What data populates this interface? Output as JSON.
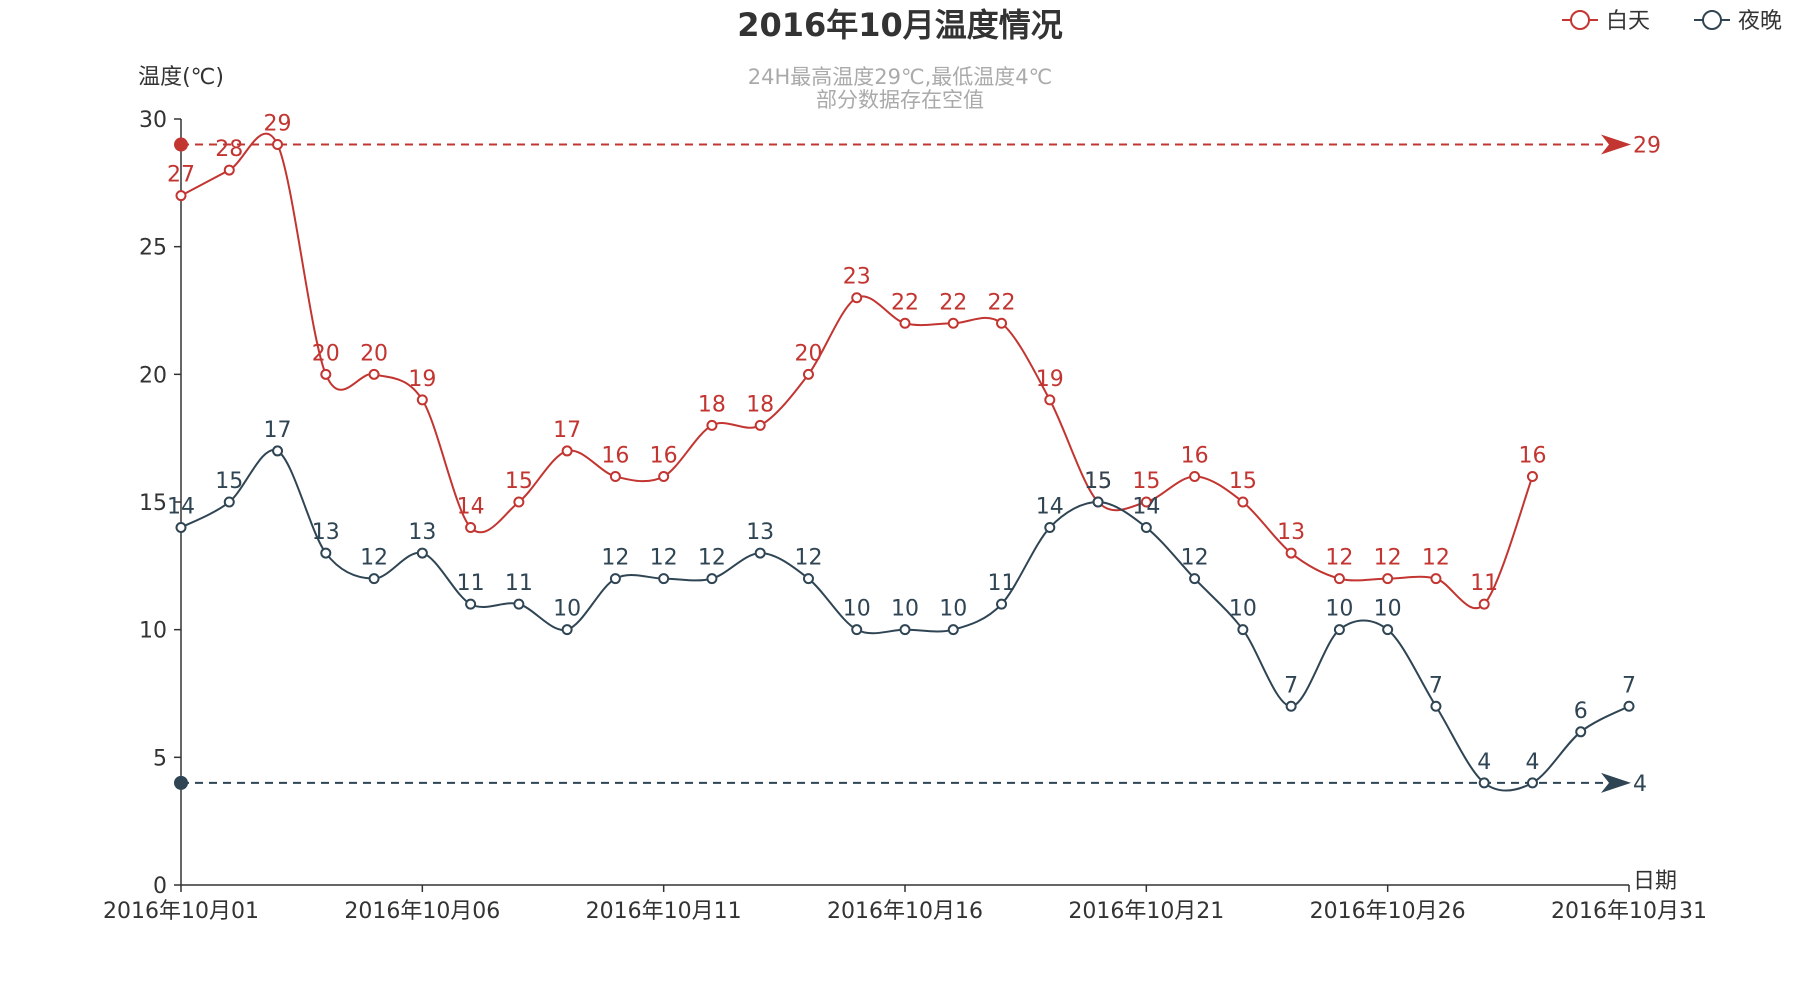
{
  "chart_data": {
    "type": "line",
    "title": "2016年10月温度情况",
    "subtitle_lines": [
      "24H最高温度29℃,最低温度4℃",
      "部分数据存在空值"
    ],
    "ylabel": "温度(℃)",
    "xlabel": "日期",
    "ylim": [
      0,
      30
    ],
    "y_ticks": [
      "0",
      "5",
      "10",
      "15",
      "20",
      "25",
      "30"
    ],
    "x_tick_labels": [
      "2016年10月01",
      "2016年10月06",
      "2016年10月11",
      "2016年10月16",
      "2016年10月21",
      "2016年10月26",
      "2016年10月31"
    ],
    "x": [
      "2016-10-01",
      "2016-10-02",
      "2016-10-03",
      "2016-10-04",
      "2016-10-05",
      "2016-10-06",
      "2016-10-07",
      "2016-10-08",
      "2016-10-09",
      "2016-10-10",
      "2016-10-11",
      "2016-10-12",
      "2016-10-13",
      "2016-10-14",
      "2016-10-15",
      "2016-10-16",
      "2016-10-17",
      "2016-10-18",
      "2016-10-19",
      "2016-10-20",
      "2016-10-21",
      "2016-10-22",
      "2016-10-23",
      "2016-10-24",
      "2016-10-25",
      "2016-10-26",
      "2016-10-27",
      "2016-10-28",
      "2016-10-29",
      "2016-10-30",
      "2016-10-31"
    ],
    "series": [
      {
        "name": "白天",
        "color": "#c23531",
        "values": [
          27,
          28,
          29,
          20,
          20,
          19,
          14,
          15,
          17,
          16,
          16,
          18,
          18,
          20,
          23,
          22,
          22,
          22,
          19,
          15,
          15,
          16,
          15,
          13,
          12,
          12,
          12,
          11,
          16,
          null,
          null
        ],
        "markline": {
          "value": 29,
          "label": "29"
        },
        "markpoint_value": 29
      },
      {
        "name": "夜晚",
        "color": "#2f4554",
        "values": [
          14,
          15,
          17,
          13,
          12,
          13,
          11,
          11,
          10,
          12,
          12,
          12,
          13,
          12,
          10,
          10,
          10,
          11,
          14,
          15,
          14,
          12,
          10,
          7,
          10,
          10,
          7,
          4,
          4,
          6,
          7
        ],
        "markline": {
          "value": 4,
          "label": "4"
        },
        "markpoint_value": 4
      }
    ],
    "legend_position": "top-right",
    "grid": false
  }
}
